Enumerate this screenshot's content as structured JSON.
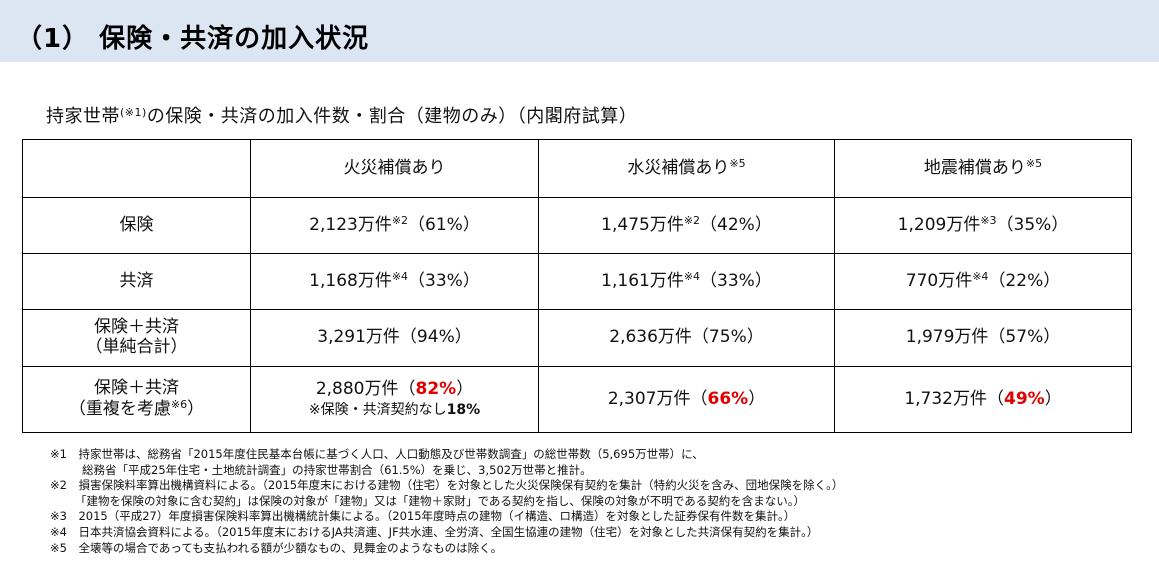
{
  "header": {
    "title": "（1） 保険・共済の加入状況"
  },
  "subtitle": {
    "main": "持家世帯",
    "sup": "(※1)",
    "rest": "の保険・共済の加入件数・割合（建物のみ）（内閣府試算）"
  },
  "table": {
    "columns": [
      {
        "label": "",
        "sup": ""
      },
      {
        "label": "火災補償あり",
        "sup": ""
      },
      {
        "label": "水災補償あり",
        "sup": "※5"
      },
      {
        "label": "地震補償あり",
        "sup": "※5"
      }
    ],
    "rows": [
      {
        "label": "保険",
        "cells": [
          {
            "main": "2,123万件",
            "sup": "※2",
            "rest": "（61%）"
          },
          {
            "main": "1,475万件",
            "sup": "※2",
            "rest": "（42%）"
          },
          {
            "main": "1,209万件",
            "sup": "※3",
            "rest": "（35%）"
          }
        ]
      },
      {
        "label": "共済",
        "cells": [
          {
            "main": "1,168万件",
            "sup": "※4",
            "rest": "（33%）"
          },
          {
            "main": "1,161万件",
            "sup": "※4",
            "rest": "（33%）"
          },
          {
            "main": "770万件",
            "sup": "※4",
            "rest": "（22%）"
          }
        ]
      },
      {
        "label_line1": "保険＋共済",
        "label_line2": "（単純合計）",
        "cells": [
          {
            "text": "3,291万件（94%）"
          },
          {
            "text": "2,636万件（75%）"
          },
          {
            "text": "1,979万件（57%）"
          }
        ]
      },
      {
        "label_line1": "保険＋共済",
        "label_line2_main": "（重複を考慮",
        "label_line2_sup": "※6",
        "label_line2_rest": "）",
        "cells": [
          {
            "pre": "2,880万件（",
            "red": "82%",
            "post": "）",
            "note_main": "※保険・共済契約なし",
            "note_bold": "18%"
          },
          {
            "pre": "2,307万件（",
            "red": "66%",
            "post": "）"
          },
          {
            "pre": "1,732万件（",
            "red": "49%",
            "post": "）"
          }
        ]
      }
    ]
  },
  "footnotes": [
    "※1　持家世帯は、総務省「2015年度住民基本台帳に基づく人口、人口動態及び世帯数調査」の総世帯数（5,695万世帯）に、",
    "総務省「平成25年住宅・土地統計調査」の持家世帯割合（61.5%）を乗じ、3,502万世帯と推計。",
    "※2　損害保険料率算出機構資料による。（2015年度末における建物（住宅）を対象とした火災保険保有契約を集計（特約火災を含み、団地保険を除く。）",
    "「建物を保険の対象に含む契約」は保険の対象が「建物」又は「建物＋家財」である契約を指し、保険の対象が不明である契約を含まない。）",
    "※3　2015（平成27）年度損害保険料率算出機構統計集による。（2015年度時点の建物（イ構造、ロ構造）を対象とした証券保有件数を集計。）",
    "※4　日本共済協会資料による。（2015年度末におけるJA共済連、JF共水連、全労済、全国生協連の建物（住宅）を対象とした共済保有契約を集計。）",
    "※5　全壊等の場合であっても支払われる額が少額なもの、見舞金のようなものは除く。"
  ]
}
